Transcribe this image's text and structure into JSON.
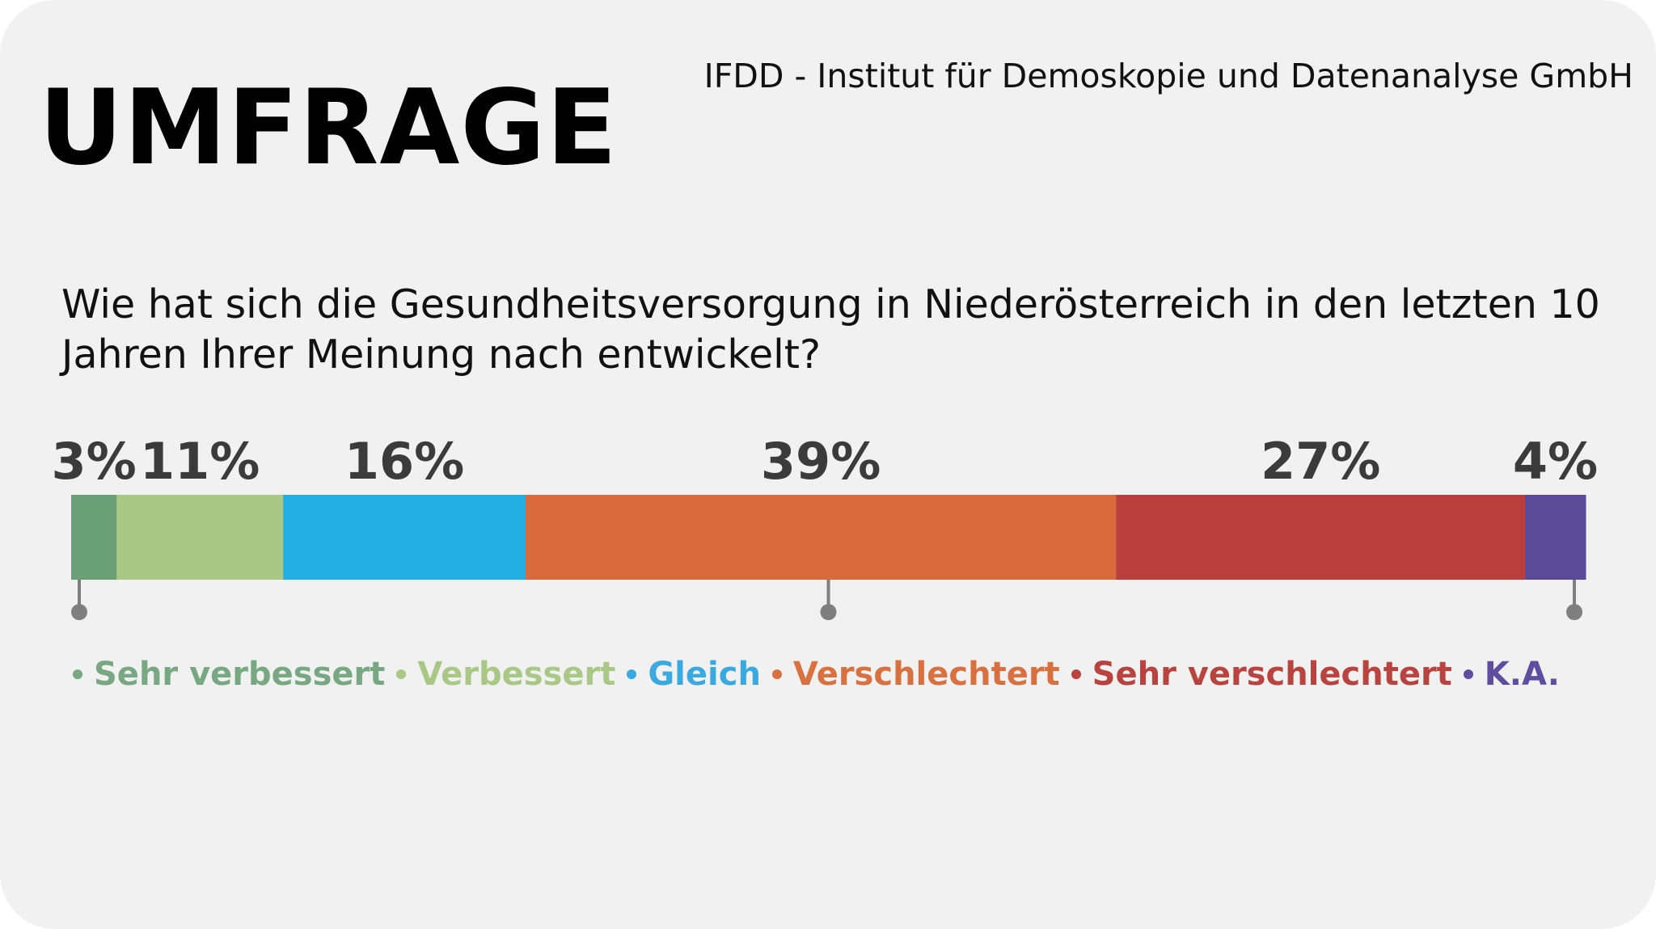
{
  "header": {
    "title": "UMFRAGE",
    "source": "IFDD - Institut für Demoskopie und Datenanalyse GmbH"
  },
  "question": "Wie hat sich die Gesundheitsversorgung in Niederösterreich in den letzten 10 Jahren Ihrer Meinung nach entwickelt?",
  "colors": {
    "background": "#f1f1f1",
    "axis_marker": "#7f7f7f"
  },
  "chart_data": {
    "type": "bar",
    "orientation": "horizontal-stacked",
    "unit": "%",
    "categories": [
      "Sehr verbessert",
      "Verbessert",
      "Gleich",
      "Verschlechtert",
      "Sehr verschlechtert",
      "K.A."
    ],
    "series": [
      {
        "name": "Sehr verbessert",
        "value": 3,
        "label": "3%",
        "color": "#6a9f78",
        "legend_color": "#77a882"
      },
      {
        "name": "Verbessert",
        "value": 11,
        "label": "11%",
        "color": "#a9c885",
        "legend_color": "#a9c885"
      },
      {
        "name": "Gleich",
        "value": 16,
        "label": "16%",
        "color": "#24aee4",
        "legend_color": "#3aa9e0"
      },
      {
        "name": "Verschlechtert",
        "value": 39,
        "label": "39%",
        "color": "#da693e",
        "legend_color": "#d9703f"
      },
      {
        "name": "Sehr verschlechtert",
        "value": 27,
        "label": "27%",
        "color": "#b83f3e",
        "legend_color": "#b8433f"
      },
      {
        "name": "K.A.",
        "value": 4,
        "label": "4%",
        "color": "#5b4a98",
        "legend_color": "#5e4ea0"
      }
    ],
    "total": 100,
    "axis_markers": [
      0,
      50,
      100
    ],
    "legend_position": "bottom",
    "grid": false
  }
}
